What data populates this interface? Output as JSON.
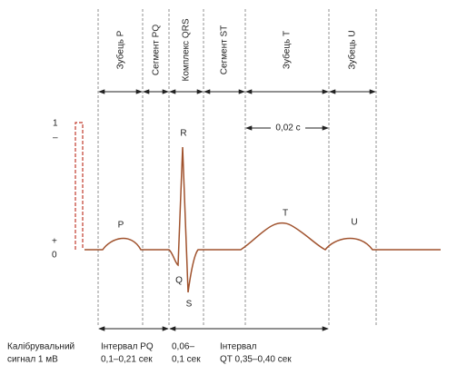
{
  "headers": [
    "Зубець P",
    "Сегмент PQ",
    "Комплекс QRS",
    "Сегмент ST",
    "Зубець T",
    "Зубець U"
  ],
  "scale": {
    "top": "1",
    "minus": "–",
    "plus": "+",
    "zero": "0"
  },
  "waves": {
    "P": "P",
    "Q": "Q",
    "R": "R",
    "S": "S",
    "T": "T",
    "U": "U"
  },
  "time_mark": "0,02 с",
  "calibration": [
    "Калібрувальний",
    "сигнал 1 мВ"
  ],
  "interval_pq": [
    "Інтервал PQ",
    "0,1–0,21 сек"
  ],
  "interval_qrs": [
    "0,06–",
    "0,1 сек"
  ],
  "interval_qt": [
    "Інтервал",
    "QT 0,35–0,40 сек"
  ]
}
